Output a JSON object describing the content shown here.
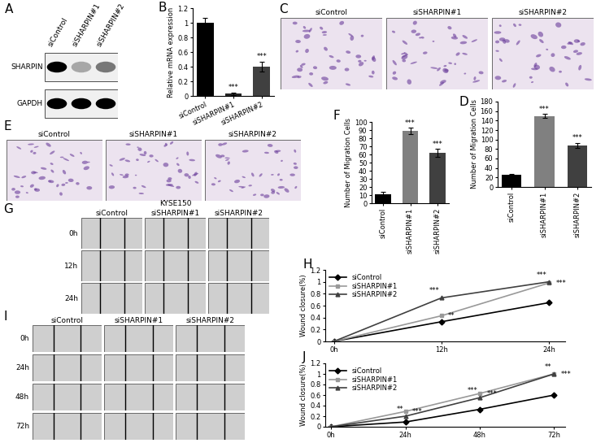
{
  "chart_data": [
    {
      "panel": "B",
      "type": "bar",
      "categories": [
        "siControl",
        "siSHARPIN#1",
        "siSHARPIN#2"
      ],
      "values": [
        1,
        0.03,
        0.4
      ],
      "errors": [
        0.07,
        0.02,
        0.07
      ],
      "colors": [
        "#000000",
        "#262626",
        "#404040"
      ],
      "annotations": [
        null,
        "***",
        "***"
      ],
      "ylabel": "Relative mRNA expression",
      "ylim": [
        0,
        1.2
      ],
      "yticks": [
        0,
        0.2,
        0.4,
        0.6,
        0.8,
        1,
        1.2
      ]
    },
    {
      "panel": "D",
      "type": "bar",
      "categories": [
        "siControl",
        "siSHARPIN#1",
        "siSHARPIN#2"
      ],
      "values": [
        25,
        150,
        88
      ],
      "errors": [
        3,
        4,
        5
      ],
      "colors": [
        "#000000",
        "#808080",
        "#404040"
      ],
      "annotations": [
        null,
        "***",
        "***"
      ],
      "ylabel": "Number of Migration Cells",
      "ylim": [
        0,
        180
      ],
      "yticks": [
        0,
        20,
        40,
        60,
        80,
        100,
        120,
        140,
        160,
        180
      ]
    },
    {
      "panel": "F",
      "type": "bar",
      "categories": [
        "siControl",
        "siSHARPIN#1",
        "siSHARPIN#2"
      ],
      "values": [
        11,
        89,
        62
      ],
      "errors": [
        3,
        4,
        5
      ],
      "colors": [
        "#000000",
        "#808080",
        "#404040"
      ],
      "annotations": [
        null,
        "***",
        "***"
      ],
      "ylabel": "Number of Migration Cells",
      "ylim": [
        0,
        100
      ],
      "yticks": [
        0,
        10,
        20,
        30,
        40,
        50,
        60,
        70,
        80,
        90,
        100
      ]
    },
    {
      "panel": "H",
      "type": "line",
      "categories": [
        "0h",
        "12h",
        "24h"
      ],
      "series": [
        {
          "name": "siControl",
          "color": "#000000",
          "marker": "diamond",
          "values": [
            0,
            0.33,
            0.65
          ],
          "annotations": [
            null,
            null,
            null
          ]
        },
        {
          "name": "siSHARPIN#1",
          "color": "#999999",
          "marker": "square",
          "values": [
            0,
            0.43,
            0.98
          ],
          "annotations": [
            null,
            "**",
            "***"
          ]
        },
        {
          "name": "siSHARPIN#2",
          "color": "#404040",
          "marker": "triangle",
          "values": [
            0,
            0.73,
            1.0
          ],
          "annotations": [
            null,
            "***",
            "***"
          ]
        }
      ],
      "ylabel": "Wound closure(%)",
      "legend": "upper left",
      "ylim": [
        0,
        1.2
      ],
      "yticks": [
        0,
        0.2,
        0.4,
        0.6,
        0.8,
        1,
        1.2
      ]
    },
    {
      "panel": "J",
      "type": "line",
      "categories": [
        "0h",
        "24h",
        "48h",
        "72h"
      ],
      "series": [
        {
          "name": "siControl",
          "color": "#000000",
          "marker": "diamond",
          "values": [
            0,
            0.09,
            0.33,
            0.6
          ],
          "annotations": [
            null,
            null,
            null,
            null
          ]
        },
        {
          "name": "siSHARPIN#1",
          "color": "#999999",
          "marker": "square",
          "values": [
            0,
            0.29,
            0.63,
            1.0
          ],
          "annotations": [
            null,
            "***",
            "***",
            "***"
          ]
        },
        {
          "name": "siSHARPIN#2",
          "color": "#404040",
          "marker": "triangle",
          "values": [
            0,
            0.2,
            0.55,
            1.0
          ],
          "annotations": [
            null,
            "**",
            "***",
            "**"
          ]
        }
      ],
      "ylabel": "Wound closure(%)",
      "legend": "upper left",
      "ylim": [
        0,
        1.2
      ],
      "yticks": [
        0,
        0.2,
        0.4,
        0.6,
        0.8,
        1,
        1.2
      ]
    }
  ],
  "images": [
    {
      "panel": "A",
      "type": "western_blot",
      "columns": [
        "siControl",
        "siSHARPIN#1",
        "siSHARPIN#2"
      ],
      "rows": [
        "SHARPIN",
        "GAPDH"
      ],
      "band_intensity": [
        [
          1,
          0.3,
          0.5
        ],
        [
          1,
          1,
          1
        ]
      ]
    },
    {
      "panel": "C",
      "type": "micrograph",
      "columns": [
        "siControl",
        "siSHARPIN#1",
        "siSHARPIN#2"
      ]
    },
    {
      "panel": "E",
      "type": "micrograph",
      "columns": [
        "siControl",
        "siSHARPIN#1",
        "siSHARPIN#2"
      ]
    },
    {
      "panel": "G",
      "type": "wound_healing",
      "title": "KYSE150",
      "columns": [
        "siControl",
        "siSHARPIN#1",
        "siSHARPIN#2"
      ],
      "rows": [
        "0h",
        "12h",
        "24h"
      ]
    },
    {
      "panel": "I",
      "type": "wound_healing",
      "columns": [
        "siControl",
        "siSHARPIN#1",
        "siSHARPIN#2"
      ],
      "rows": [
        "0h",
        "24h",
        "48h",
        "72h"
      ]
    }
  ]
}
